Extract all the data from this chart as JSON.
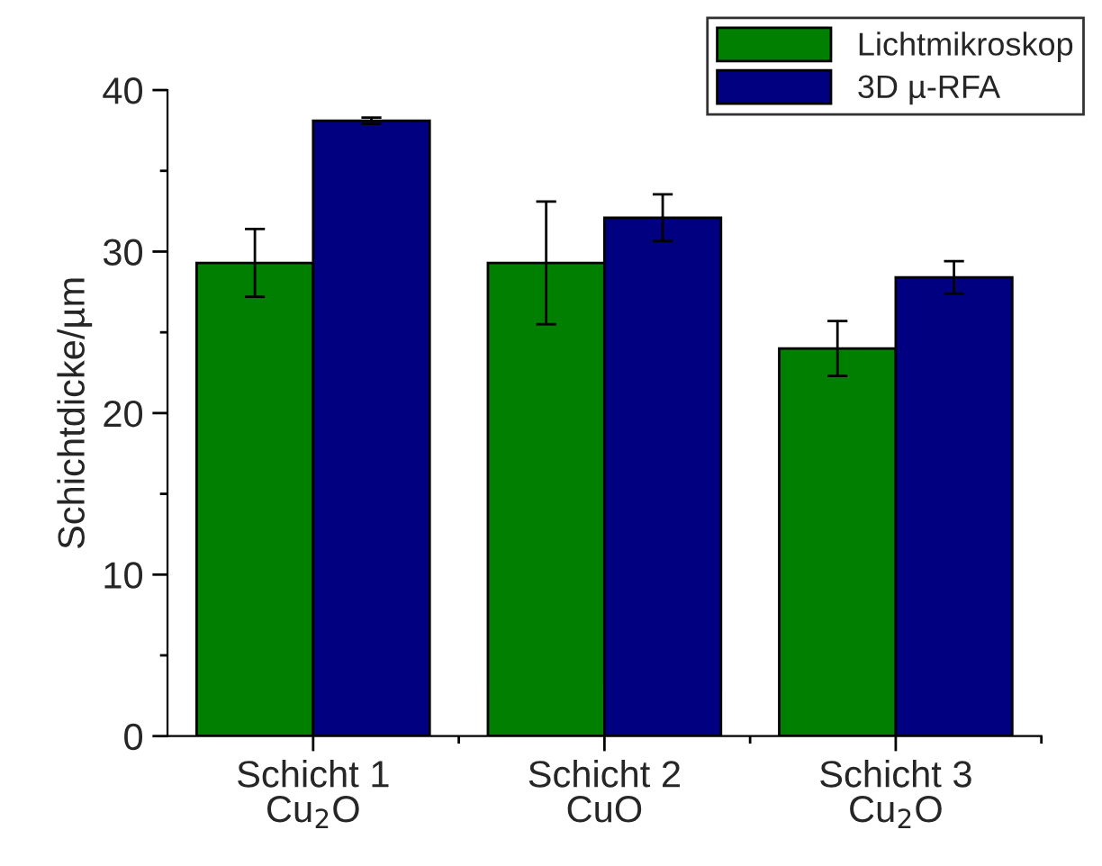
{
  "chart_data": {
    "type": "bar",
    "ylabel": "Schichtdicke/µm",
    "categories": [
      "Schicht 1\nCu$_{2}$O",
      "Schicht 2\nCuO",
      "Schicht 3\nCu$_{2}$O"
    ],
    "series": [
      {
        "name": "Lichtmikroskop",
        "color": "#007f00",
        "values": [
          29.3,
          29.3,
          24.0
        ],
        "errors": [
          2.1,
          3.8,
          1.7
        ]
      },
      {
        "name": "3D µ-RFA",
        "color": "#000080",
        "values": [
          38.1,
          32.1,
          28.4
        ],
        "errors": [
          0.2,
          1.45,
          1.0
        ]
      }
    ],
    "ylim": [
      0,
      40
    ],
    "yticks": [
      0,
      10,
      20,
      30,
      40
    ],
    "grid": false,
    "legend": "top right"
  }
}
